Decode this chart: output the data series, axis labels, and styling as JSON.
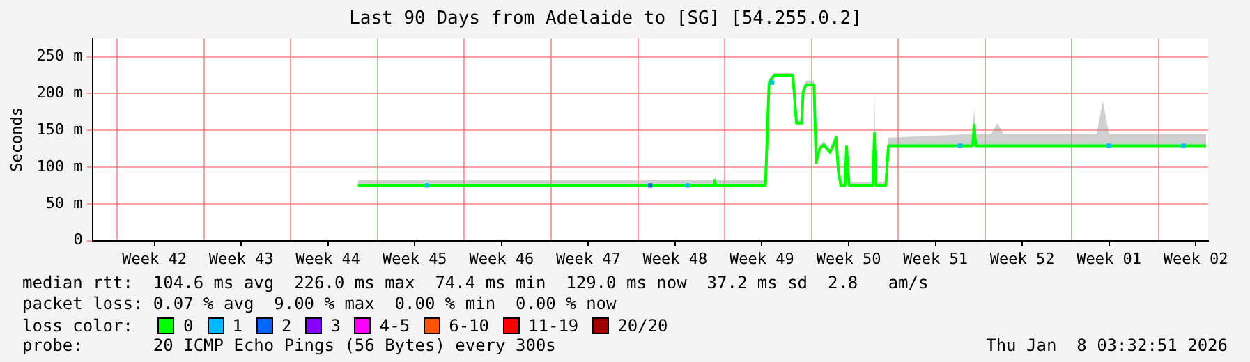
{
  "chart_data": {
    "type": "line",
    "title": "Last 90 Days from Adelaide to [SG] [54.255.0.2]",
    "ylabel": "Seconds",
    "xlim": [
      "2025-10-11",
      "2026-01-09"
    ],
    "xticks": [
      {
        "value": "2025-10-13",
        "label": null
      },
      {
        "value": "2025-10-16",
        "label": "Week 42"
      },
      {
        "value": "2025-10-20",
        "label": null
      },
      {
        "value": "2025-10-23",
        "label": "Week 43"
      },
      {
        "value": "2025-10-27",
        "label": null
      },
      {
        "value": "2025-10-30",
        "label": "Week 44"
      },
      {
        "value": "2025-11-03",
        "label": null
      },
      {
        "value": "2025-11-06",
        "label": "Week 45"
      },
      {
        "value": "2025-11-10",
        "label": null
      },
      {
        "value": "2025-11-13",
        "label": "Week 46"
      },
      {
        "value": "2025-11-17",
        "label": null
      },
      {
        "value": "2025-11-20",
        "label": "Week 47"
      },
      {
        "value": "2025-11-24",
        "label": null
      },
      {
        "value": "2025-11-27",
        "label": "Week 48"
      },
      {
        "value": "2025-12-01",
        "label": null
      },
      {
        "value": "2025-12-04",
        "label": "Week 49"
      },
      {
        "value": "2025-12-08",
        "label": null
      },
      {
        "value": "2025-12-11",
        "label": "Week 50"
      },
      {
        "value": "2025-12-15",
        "label": null
      },
      {
        "value": "2025-12-18",
        "label": "Week 51"
      },
      {
        "value": "2025-12-22",
        "label": null
      },
      {
        "value": "2025-12-25",
        "label": "Week 52"
      },
      {
        "value": "2025-12-29",
        "label": null
      },
      {
        "value": "2026-01-01",
        "label": "Week 01"
      },
      {
        "value": "2026-01-05",
        "label": null
      },
      {
        "value": "2026-01-08",
        "label": "Week 02"
      }
    ],
    "ylim": [
      0,
      275
    ],
    "yticks": [
      0,
      {
        "value": 50,
        "label": "50 m"
      },
      {
        "value": 100,
        "label": "100 m"
      },
      {
        "value": 150,
        "label": "150 m"
      },
      {
        "value": 200,
        "label": "200 m"
      },
      {
        "value": 250,
        "label": "250 m"
      }
    ],
    "grid": true,
    "legend": "bottom",
    "legend_title": "loss color:",
    "series": [
      {
        "name": "0",
        "color": "#00ff00",
        "x": [
          "2025-11-01T10:00",
          "2025-11-30T03:00",
          "2025-11-30T05:00",
          "2025-11-30T07:00",
          "2025-12-04T07:00",
          "2025-12-04T14:00",
          "2025-12-05T00:00",
          "2025-12-06T12:00",
          "2025-12-06T19:00",
          "2025-12-07T05:00",
          "2025-12-07T08:00",
          "2025-12-07T14:00",
          "2025-12-08T05:00",
          "2025-12-08T09:00",
          "2025-12-08T16:00",
          "2025-12-09T00:00",
          "2025-12-09T12:00",
          "2025-12-09T20:00",
          "2025-12-10T00:00",
          "2025-12-10T04:00",
          "2025-12-10T09:00",
          "2025-12-10T17:00",
          "2025-12-10T20:00",
          "2025-12-11T01:00",
          "2025-12-12T23:00",
          "2025-12-13T02:00",
          "2025-12-13T05:00",
          "2025-12-14T00:00",
          "2025-12-14T05:00",
          "2025-12-21T00:00",
          "2025-12-21T03:00",
          "2025-12-21T06:00",
          "2025-12-22T12:00",
          "2025-12-23T00:00",
          "2025-12-23T12:00",
          "2025-12-31T00:00",
          "2025-12-31T12:00",
          "2026-01-01T00:00",
          "2026-01-08T20:00"
        ],
        "values": [
          75,
          75,
          82,
          75,
          75,
          215,
          225,
          225,
          160,
          160,
          203,
          212,
          212,
          106,
          125,
          130,
          120,
          132,
          140,
          95,
          75,
          75,
          128,
          75,
          75,
          146,
          75,
          75,
          129,
          129,
          157,
          129,
          129,
          129,
          129,
          129,
          129,
          129,
          129
        ],
        "lower": [
          75,
          75,
          80,
          75,
          75,
          215,
          225,
          225,
          160,
          160,
          203,
          212,
          212,
          106,
          125,
          130,
          120,
          132,
          140,
          95,
          75,
          75,
          128,
          75,
          75,
          146,
          75,
          75,
          129,
          129,
          157,
          129,
          129,
          129,
          129,
          129,
          129,
          129,
          129
        ],
        "upper": [
          82,
          82,
          88,
          82,
          82,
          220,
          228,
          228,
          165,
          165,
          210,
          218,
          218,
          115,
          130,
          135,
          125,
          140,
          145,
          100,
          80,
          80,
          130,
          80,
          80,
          197,
          80,
          80,
          140,
          145,
          180,
          145,
          145,
          160,
          145,
          145,
          190,
          145,
          145
        ]
      },
      {
        "name": "1",
        "color": "#00bbff",
        "type": "scatter",
        "marker": "square",
        "x": [
          "2025-11-07T00:00",
          "2025-11-28T00:00",
          "2025-12-04T20:00",
          "2025-12-20T00:00",
          "2026-01-01T00:00",
          "2026-01-07T00:00"
        ],
        "values": [
          75,
          75,
          215,
          129,
          129,
          129
        ]
      },
      {
        "name": "2",
        "color": "#0066ff",
        "type": "scatter",
        "marker": "square",
        "x": [
          "2025-11-25T00:00"
        ],
        "values": [
          75
        ]
      },
      {
        "name": "3",
        "color": "#8800ff",
        "type": "scatter",
        "marker": "square"
      },
      {
        "name": "4-5",
        "color": "#ff00ff",
        "type": "scatter",
        "marker": "square"
      },
      {
        "name": "6-10",
        "color": "#ff5500",
        "type": "scatter",
        "marker": "square"
      },
      {
        "name": "11-19",
        "color": "#ff0000",
        "type": "scatter",
        "marker": "square"
      },
      {
        "name": "20/20",
        "color": "#a10000",
        "type": "scatter",
        "marker": "square"
      }
    ],
    "annotations": [
      "median rtt:  104.6 ms avg  226.0 ms max  74.4 ms min  129.0 ms now  37.2 ms sd  2.8   am/s",
      "packet loss: 0.07 % avg  9.00 % max  0.00 % min  0.00 % now",
      "probe:       20 ICMP Echo Pings (56 Bytes) every 300s",
      "Thu Jan  8 03:32:51 2026"
    ]
  }
}
